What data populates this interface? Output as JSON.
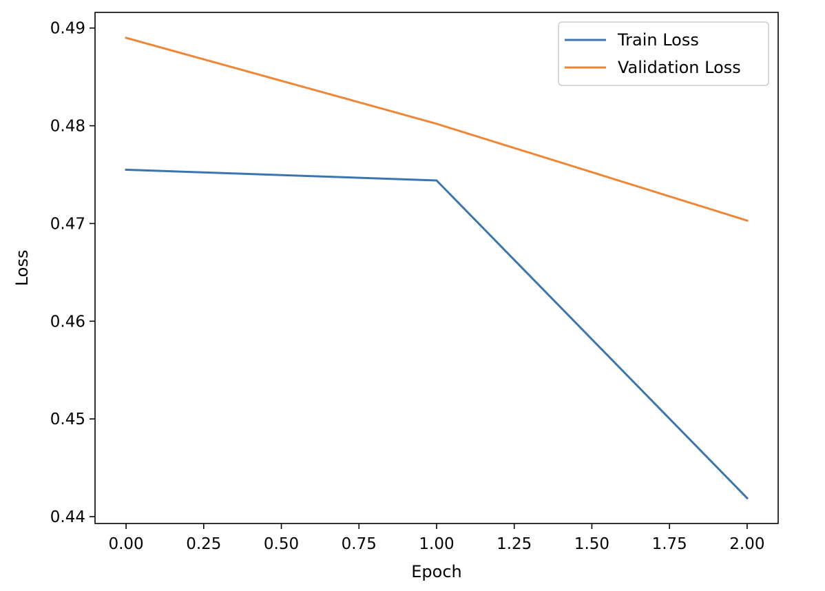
{
  "chart_data": {
    "type": "line",
    "title": "",
    "xlabel": "Epoch",
    "ylabel": "Loss",
    "xlim": [
      -0.1,
      2.1
    ],
    "ylim": [
      0.4393,
      0.4916
    ],
    "xticks": [
      0.0,
      0.25,
      0.5,
      0.75,
      1.0,
      1.25,
      1.5,
      1.75,
      2.0
    ],
    "xtick_labels": [
      "0.00",
      "0.25",
      "0.50",
      "0.75",
      "1.00",
      "1.25",
      "1.50",
      "1.75",
      "2.00"
    ],
    "yticks": [
      0.44,
      0.45,
      0.46,
      0.47,
      0.48,
      0.49
    ],
    "ytick_labels": [
      "0.44",
      "0.45",
      "0.46",
      "0.47",
      "0.48",
      "0.49"
    ],
    "grid": false,
    "legend_position": "top-right",
    "x": [
      0,
      1,
      2
    ],
    "series": [
      {
        "name": "Train Loss",
        "color": "#3b75af",
        "values": [
          0.4755,
          0.4744,
          0.4419
        ]
      },
      {
        "name": "Validation Loss",
        "color": "#ef8636",
        "values": [
          0.489,
          0.4802,
          0.4703
        ]
      }
    ]
  }
}
